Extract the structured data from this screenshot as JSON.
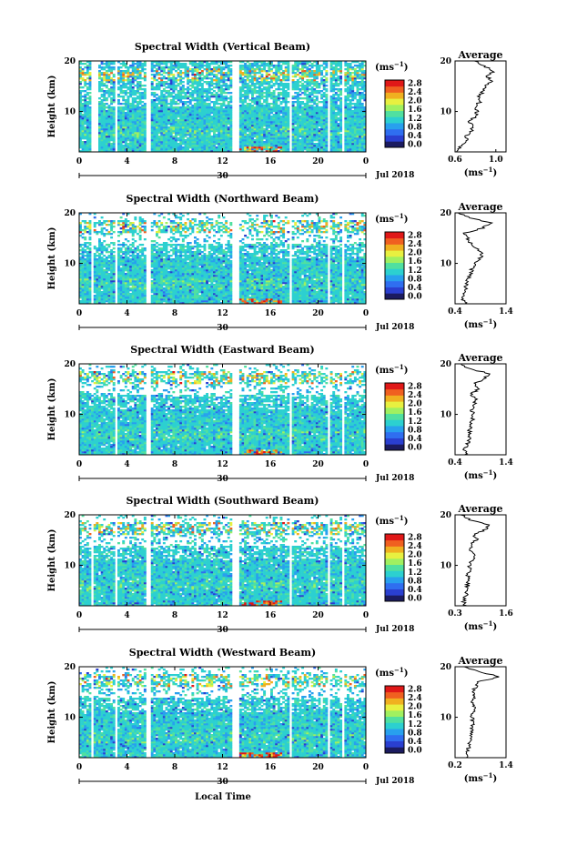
{
  "x_axis_label": "Local Time",
  "month_label": "Jul 2018",
  "date_label": "30",
  "ylabel": "Height (km)",
  "colorbar": {
    "unit": "(ms",
    "unit_exp": "−1",
    "unit_close": ")",
    "ticks": [
      "2.8",
      "2.4",
      "2.0",
      "1.6",
      "1.2",
      "0.8",
      "0.4",
      "0.0"
    ],
    "colors": [
      "#1b1b60",
      "#2a3fd0",
      "#2f6ef0",
      "#28a0ee",
      "#2cd0d0",
      "#50e0a0",
      "#a0f060",
      "#e8f040",
      "#f0b020",
      "#f06020",
      "#e01818"
    ]
  },
  "average": {
    "title": "Average",
    "xlabel": "(ms",
    "xlabel_exp": "−1",
    "xlabel_close": ")"
  },
  "chart_data": [
    {
      "type": "heatmap",
      "title": "Spectral Width (Vertical Beam)",
      "ylim": [
        2,
        20
      ],
      "yticks": [
        "20",
        "10"
      ],
      "xticks": [
        "0",
        "4",
        "8",
        "12",
        "16",
        "20",
        "0"
      ],
      "xlim": [
        0,
        24
      ],
      "gaps": [
        [
          1.0,
          1.6
        ],
        [
          3.0,
          3.3
        ],
        [
          5.6,
          5.9
        ],
        [
          12.8,
          13.3
        ],
        [
          17.6,
          17.8
        ],
        [
          20.8,
          21.0
        ],
        [
          22.0,
          22.2
        ]
      ],
      "colorbar_range": [
        0.0,
        2.8
      ],
      "average_profile": {
        "x_ticks": [
          "0.6",
          "1.0"
        ],
        "xlim": [
          0.6,
          1.1
        ],
        "height_km": [
          2,
          3,
          4,
          5,
          6,
          7,
          8,
          9,
          10,
          11,
          12,
          13,
          14,
          15,
          16,
          17,
          18,
          19,
          20
        ],
        "values": [
          0.62,
          0.65,
          0.72,
          0.7,
          0.76,
          0.78,
          0.74,
          0.8,
          0.82,
          0.8,
          0.85,
          0.83,
          0.88,
          0.9,
          0.95,
          0.92,
          0.98,
          0.88,
          0.8
        ]
      }
    },
    {
      "type": "heatmap",
      "title": "Spectral Width (Northward Beam)",
      "ylim": [
        2,
        20
      ],
      "yticks": [
        "20",
        "10"
      ],
      "xticks": [
        "0",
        "4",
        "8",
        "12",
        "16",
        "20",
        "0"
      ],
      "xlim": [
        0,
        24
      ],
      "gaps": [
        [
          1.0,
          1.2
        ],
        [
          3.0,
          3.3
        ],
        [
          5.6,
          5.9
        ],
        [
          12.8,
          13.3
        ],
        [
          17.6,
          17.8
        ],
        [
          20.8,
          21.0
        ],
        [
          22.0,
          22.2
        ]
      ],
      "colorbar_range": [
        0.0,
        2.8
      ],
      "average_profile": {
        "x_ticks": [
          "0.4",
          "1.4"
        ],
        "xlim": [
          0.4,
          1.4
        ],
        "height_km": [
          2,
          3,
          4,
          5,
          6,
          7,
          8,
          9,
          10,
          11,
          12,
          13,
          14,
          15,
          16,
          17,
          18,
          19,
          20
        ],
        "values": [
          0.62,
          0.55,
          0.58,
          0.6,
          0.62,
          0.66,
          0.7,
          0.74,
          0.8,
          0.88,
          0.95,
          0.8,
          0.7,
          0.65,
          0.6,
          0.95,
          1.1,
          0.7,
          0.45
        ]
      }
    },
    {
      "type": "heatmap",
      "title": "Spectral Width (Eastward Beam)",
      "ylim": [
        2,
        20
      ],
      "yticks": [
        "20",
        "10"
      ],
      "xticks": [
        "0",
        "4",
        "8",
        "12",
        "16",
        "20",
        "0"
      ],
      "xlim": [
        0,
        24
      ],
      "gaps": [
        [
          3.0,
          3.3
        ],
        [
          5.6,
          5.9
        ],
        [
          12.8,
          13.3
        ],
        [
          17.6,
          17.8
        ],
        [
          20.8,
          21.0
        ],
        [
          22.0,
          22.2
        ]
      ],
      "colorbar_range": [
        0.0,
        2.8
      ],
      "average_profile": {
        "x_ticks": [
          "0.4",
          "1.4"
        ],
        "xlim": [
          0.4,
          1.4
        ],
        "height_km": [
          2,
          3,
          4,
          5,
          6,
          7,
          8,
          9,
          10,
          11,
          12,
          13,
          14,
          15,
          16,
          17,
          18,
          19,
          20
        ],
        "values": [
          0.62,
          0.58,
          0.64,
          0.66,
          0.7,
          0.68,
          0.72,
          0.74,
          0.76,
          0.72,
          0.78,
          0.8,
          0.72,
          0.85,
          0.78,
          0.95,
          1.1,
          0.7,
          0.5
        ]
      }
    },
    {
      "type": "heatmap",
      "title": "Spectral Width (Southward Beam)",
      "ylim": [
        2,
        20
      ],
      "yticks": [
        "20",
        "10"
      ],
      "xticks": [
        "0",
        "4",
        "8",
        "12",
        "16",
        "20",
        "0"
      ],
      "xlim": [
        0,
        24
      ],
      "gaps": [
        [
          1.0,
          1.2
        ],
        [
          3.0,
          3.3
        ],
        [
          5.6,
          5.9
        ],
        [
          12.8,
          13.3
        ],
        [
          17.6,
          17.8
        ],
        [
          20.8,
          21.0
        ],
        [
          22.0,
          22.2
        ]
      ],
      "colorbar_range": [
        0.0,
        2.8
      ],
      "average_profile": {
        "x_ticks": [
          "0.3",
          "1.6"
        ],
        "xlim": [
          0.3,
          1.6
        ],
        "height_km": [
          2,
          3,
          4,
          5,
          6,
          7,
          8,
          9,
          10,
          11,
          12,
          13,
          14,
          15,
          16,
          17,
          18,
          19,
          20
        ],
        "values": [
          0.55,
          0.52,
          0.58,
          0.6,
          0.62,
          0.64,
          0.62,
          0.66,
          0.68,
          0.72,
          0.8,
          0.7,
          0.68,
          0.85,
          0.8,
          1.05,
          1.2,
          0.7,
          0.45
        ]
      }
    },
    {
      "type": "heatmap",
      "title": "Spectral Width (Westward Beam)",
      "ylim": [
        2,
        20
      ],
      "yticks": [
        "20",
        "10"
      ],
      "xticks": [
        "0",
        "4",
        "8",
        "12",
        "16",
        "20",
        "0"
      ],
      "xlim": [
        0,
        24
      ],
      "gaps": [
        [
          1.0,
          1.2
        ],
        [
          3.0,
          3.3
        ],
        [
          5.6,
          5.9
        ],
        [
          12.8,
          13.3
        ],
        [
          17.6,
          17.8
        ],
        [
          20.8,
          21.0
        ],
        [
          22.0,
          22.2
        ]
      ],
      "colorbar_range": [
        0.0,
        2.8
      ],
      "average_profile": {
        "x_ticks": [
          "0.2",
          "1.4"
        ],
        "xlim": [
          0.2,
          1.4
        ],
        "height_km": [
          2,
          3,
          4,
          5,
          6,
          7,
          8,
          9,
          10,
          11,
          12,
          13,
          14,
          15,
          16,
          17,
          18,
          19,
          20
        ],
        "values": [
          0.5,
          0.48,
          0.52,
          0.55,
          0.56,
          0.58,
          0.6,
          0.62,
          0.6,
          0.64,
          0.66,
          0.62,
          0.65,
          0.6,
          0.7,
          0.75,
          1.25,
          0.8,
          0.4
        ]
      }
    }
  ]
}
